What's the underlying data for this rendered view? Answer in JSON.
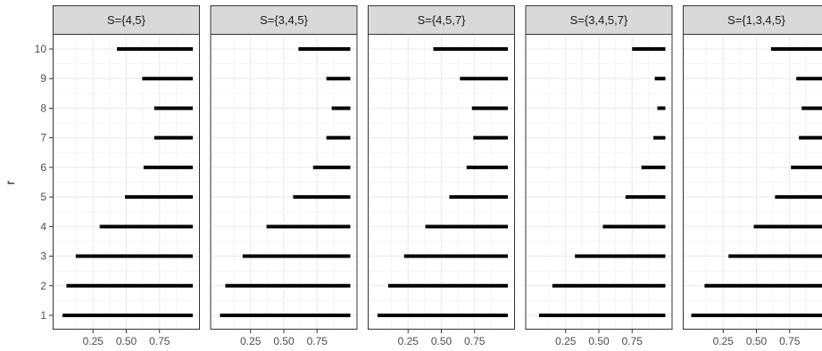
{
  "chart_data": {
    "type": "interval",
    "ylabel": "r",
    "xlabel": "",
    "x_ticks": [
      "0.25",
      "0.50",
      "0.75"
    ],
    "x_tick_values": [
      0.25,
      0.5,
      0.75
    ],
    "xlim": [
      0.0,
      1.0
    ],
    "r_values": [
      "1",
      "2",
      "3",
      "4",
      "5",
      "6",
      "7",
      "8",
      "9",
      "10"
    ],
    "grid": true,
    "panels": [
      {
        "label": "S={4,5}",
        "intervals": [
          {
            "r": 1,
            "lower": 0.02,
            "upper": 1.0
          },
          {
            "r": 2,
            "lower": 0.05,
            "upper": 1.0
          },
          {
            "r": 3,
            "lower": 0.12,
            "upper": 1.0
          },
          {
            "r": 4,
            "lower": 0.3,
            "upper": 1.0
          },
          {
            "r": 5,
            "lower": 0.49,
            "upper": 1.0
          },
          {
            "r": 6,
            "lower": 0.63,
            "upper": 1.0
          },
          {
            "r": 7,
            "lower": 0.71,
            "upper": 1.0
          },
          {
            "r": 8,
            "lower": 0.71,
            "upper": 1.0
          },
          {
            "r": 9,
            "lower": 0.62,
            "upper": 1.0
          },
          {
            "r": 10,
            "lower": 0.43,
            "upper": 1.0
          }
        ]
      },
      {
        "label": "S={3,4,5}",
        "intervals": [
          {
            "r": 1,
            "lower": 0.02,
            "upper": 1.0
          },
          {
            "r": 2,
            "lower": 0.06,
            "upper": 1.0
          },
          {
            "r": 3,
            "lower": 0.19,
            "upper": 1.0
          },
          {
            "r": 4,
            "lower": 0.37,
            "upper": 1.0
          },
          {
            "r": 5,
            "lower": 0.57,
            "upper": 1.0
          },
          {
            "r": 6,
            "lower": 0.72,
            "upper": 1.0
          },
          {
            "r": 7,
            "lower": 0.82,
            "upper": 1.0
          },
          {
            "r": 8,
            "lower": 0.86,
            "upper": 1.0
          },
          {
            "r": 9,
            "lower": 0.82,
            "upper": 1.0
          },
          {
            "r": 10,
            "lower": 0.61,
            "upper": 1.0
          }
        ]
      },
      {
        "label": "S={4,5,7}",
        "intervals": [
          {
            "r": 1,
            "lower": 0.02,
            "upper": 1.0
          },
          {
            "r": 2,
            "lower": 0.1,
            "upper": 1.0
          },
          {
            "r": 3,
            "lower": 0.22,
            "upper": 1.0
          },
          {
            "r": 4,
            "lower": 0.38,
            "upper": 1.0
          },
          {
            "r": 5,
            "lower": 0.56,
            "upper": 1.0
          },
          {
            "r": 6,
            "lower": 0.69,
            "upper": 1.0
          },
          {
            "r": 7,
            "lower": 0.74,
            "upper": 1.0
          },
          {
            "r": 8,
            "lower": 0.73,
            "upper": 1.0
          },
          {
            "r": 9,
            "lower": 0.64,
            "upper": 1.0
          },
          {
            "r": 10,
            "lower": 0.44,
            "upper": 1.0
          }
        ]
      },
      {
        "label": "S={3,4,5,7}",
        "intervals": [
          {
            "r": 1,
            "lower": 0.05,
            "upper": 1.0
          },
          {
            "r": 2,
            "lower": 0.15,
            "upper": 1.0
          },
          {
            "r": 3,
            "lower": 0.32,
            "upper": 1.0
          },
          {
            "r": 4,
            "lower": 0.53,
            "upper": 1.0
          },
          {
            "r": 5,
            "lower": 0.7,
            "upper": 1.0
          },
          {
            "r": 6,
            "lower": 0.82,
            "upper": 1.0
          },
          {
            "r": 7,
            "lower": 0.91,
            "upper": 1.0
          },
          {
            "r": 8,
            "lower": 0.94,
            "upper": 1.0
          },
          {
            "r": 9,
            "lower": 0.92,
            "upper": 1.0
          },
          {
            "r": 10,
            "lower": 0.75,
            "upper": 1.0
          }
        ]
      },
      {
        "label": "S={1,3,4,5}",
        "intervals": [
          {
            "r": 1,
            "lower": 0.01,
            "upper": 1.0
          },
          {
            "r": 2,
            "lower": 0.11,
            "upper": 1.0
          },
          {
            "r": 3,
            "lower": 0.29,
            "upper": 1.0
          },
          {
            "r": 4,
            "lower": 0.48,
            "upper": 1.0
          },
          {
            "r": 5,
            "lower": 0.64,
            "upper": 1.0
          },
          {
            "r": 6,
            "lower": 0.76,
            "upper": 1.0
          },
          {
            "r": 7,
            "lower": 0.82,
            "upper": 1.0
          },
          {
            "r": 8,
            "lower": 0.84,
            "upper": 1.0
          },
          {
            "r": 9,
            "lower": 0.8,
            "upper": 1.0
          },
          {
            "r": 10,
            "lower": 0.61,
            "upper": 1.0
          }
        ]
      }
    ],
    "colors": {
      "bar": "#000000",
      "strip_bg": "#d9d9d9",
      "panel_border": "#333333",
      "grid_major": "#ebebeb",
      "grid_minor": "#f5f5f5",
      "tick_text": "#4d4d4d",
      "title_text": "#1a1a1a"
    }
  }
}
